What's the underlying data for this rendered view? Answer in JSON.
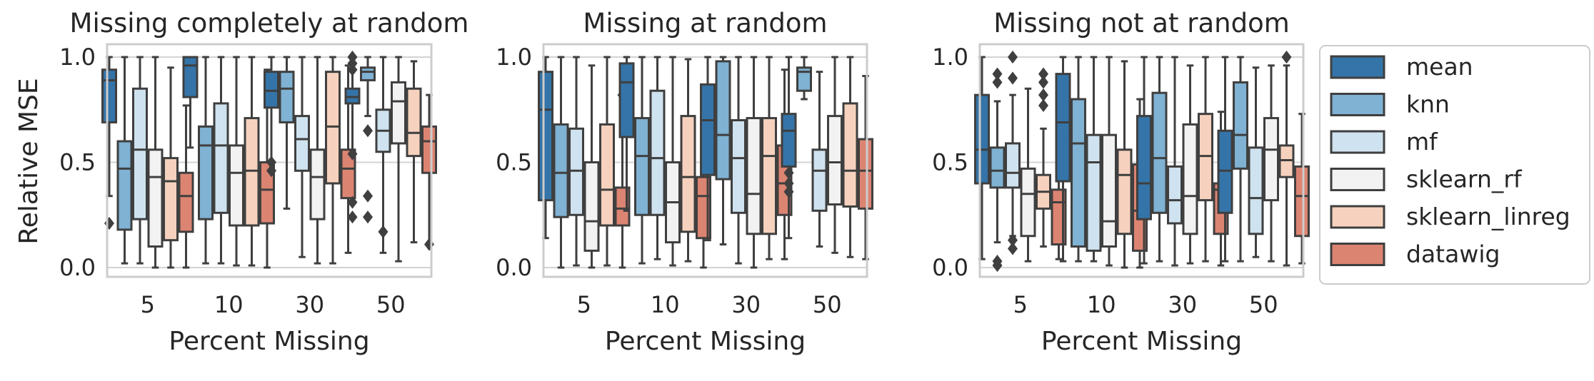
{
  "chart_data": {
    "type": "box",
    "ylabel": "Relative MSE",
    "xlabel": "Percent Missing",
    "categories": [
      "5",
      "10",
      "30",
      "50"
    ],
    "yticks": [
      "0.0",
      "0.5",
      "1.0"
    ],
    "ylim": [
      -0.04,
      1.06
    ],
    "grid": true,
    "legend_position": "right",
    "series": [
      {
        "name": "mean",
        "color": "#3474a8"
      },
      {
        "name": "knn",
        "color": "#7fb2d3"
      },
      {
        "name": "mf",
        "color": "#cfe2ef"
      },
      {
        "name": "sklearn_rf",
        "color": "#f2f2f2"
      },
      {
        "name": "sklearn_linreg",
        "color": "#f6d2be"
      },
      {
        "name": "datawig",
        "color": "#dc8472"
      }
    ],
    "panels": [
      {
        "title": "Missing completely at random",
        "groups": [
          [
            {
              "min": 0.34,
              "q1": 0.69,
              "med": 0.89,
              "q3": 0.94,
              "max": 1.0,
              "outliers": [
                0.21
              ]
            },
            {
              "min": 0.02,
              "q1": 0.18,
              "med": 0.47,
              "q3": 0.6,
              "max": 1.0
            },
            {
              "min": 0.02,
              "q1": 0.23,
              "med": 0.56,
              "q3": 0.85,
              "max": 1.0
            },
            {
              "min": 0.0,
              "q1": 0.1,
              "med": 0.43,
              "q3": 0.56,
              "max": 1.0
            },
            {
              "min": 0.0,
              "q1": 0.13,
              "med": 0.41,
              "q3": 0.52,
              "max": 0.95
            },
            {
              "min": 0.0,
              "q1": 0.17,
              "med": 0.34,
              "q3": 0.45,
              "max": 0.77
            }
          ],
          [
            {
              "min": 0.57,
              "q1": 0.81,
              "med": 0.96,
              "q3": 1.0,
              "max": 1.0
            },
            {
              "min": 0.02,
              "q1": 0.23,
              "med": 0.58,
              "q3": 0.67,
              "max": 1.0
            },
            {
              "min": 0.02,
              "q1": 0.26,
              "med": 0.58,
              "q3": 0.78,
              "max": 1.0
            },
            {
              "min": 0.01,
              "q1": 0.2,
              "med": 0.45,
              "q3": 0.58,
              "max": 1.0
            },
            {
              "min": 0.01,
              "q1": 0.2,
              "med": 0.46,
              "q3": 0.71,
              "max": 1.0
            },
            {
              "min": 0.0,
              "q1": 0.21,
              "med": 0.37,
              "q3": 0.5,
              "max": 0.94
            }
          ],
          [
            {
              "min": 0.5,
              "q1": 0.76,
              "med": 0.84,
              "q3": 0.93,
              "max": 1.0,
              "outliers": [
                0.5,
                0.46
              ]
            },
            {
              "min": 0.28,
              "q1": 0.69,
              "med": 0.85,
              "q3": 0.93,
              "max": 1.0
            },
            {
              "min": 0.05,
              "q1": 0.46,
              "med": 0.61,
              "q3": 0.72,
              "max": 1.0
            },
            {
              "min": 0.02,
              "q1": 0.23,
              "med": 0.43,
              "q3": 0.56,
              "max": 1.0
            },
            {
              "min": 0.02,
              "q1": 0.4,
              "med": 0.67,
              "q3": 0.93,
              "max": 1.0
            },
            {
              "min": 0.07,
              "q1": 0.33,
              "med": 0.47,
              "q3": 0.56,
              "max": 0.96
            }
          ],
          [
            {
              "min": 0.56,
              "q1": 0.78,
              "med": 0.81,
              "q3": 0.85,
              "max": 0.97,
              "outliers": [
                1.0,
                0.97,
                0.94,
                0.54,
                0.31,
                0.24
              ]
            },
            {
              "min": 0.72,
              "q1": 0.89,
              "med": 0.93,
              "q3": 0.95,
              "max": 1.0,
              "outliers": [
                0.65,
                0.34,
                0.24
              ]
            },
            {
              "min": 0.07,
              "q1": 0.55,
              "med": 0.65,
              "q3": 0.75,
              "max": 1.0,
              "outliers": [
                0.17
              ]
            },
            {
              "min": 0.03,
              "q1": 0.59,
              "med": 0.79,
              "q3": 0.88,
              "max": 1.0
            },
            {
              "min": 0.12,
              "q1": 0.53,
              "med": 0.64,
              "q3": 0.85,
              "max": 0.98
            },
            {
              "min": 0.11,
              "q1": 0.45,
              "med": 0.6,
              "q3": 0.67,
              "max": 0.82,
              "outliers": [
                0.11
              ]
            }
          ]
        ]
      },
      {
        "title": "Missing at random",
        "groups": [
          [
            {
              "min": 0.14,
              "q1": 0.32,
              "med": 0.75,
              "q3": 0.93,
              "max": 1.0
            },
            {
              "min": 0.0,
              "q1": 0.24,
              "med": 0.45,
              "q3": 0.68,
              "max": 1.0
            },
            {
              "min": 0.01,
              "q1": 0.25,
              "med": 0.46,
              "q3": 0.66,
              "max": 1.0
            },
            {
              "min": 0.0,
              "q1": 0.08,
              "med": 0.22,
              "q3": 0.5,
              "max": 0.96
            },
            {
              "min": 0.01,
              "q1": 0.2,
              "med": 0.37,
              "q3": 0.68,
              "max": 1.0
            },
            {
              "min": 0.0,
              "q1": 0.2,
              "med": 0.28,
              "q3": 0.38,
              "max": 0.8,
              "outliers": [
                0.82
              ]
            }
          ],
          [
            {
              "min": 0.27,
              "q1": 0.62,
              "med": 0.88,
              "q3": 0.97,
              "max": 1.0
            },
            {
              "min": 0.02,
              "q1": 0.25,
              "med": 0.53,
              "q3": 0.71,
              "max": 1.0
            },
            {
              "min": 0.04,
              "q1": 0.25,
              "med": 0.52,
              "q3": 0.84,
              "max": 1.0
            },
            {
              "min": 0.01,
              "q1": 0.12,
              "med": 0.31,
              "q3": 0.5,
              "max": 1.0
            },
            {
              "min": 0.03,
              "q1": 0.17,
              "med": 0.43,
              "q3": 0.72,
              "max": 0.99
            },
            {
              "min": 0.0,
              "q1": 0.14,
              "med": 0.34,
              "q3": 0.43,
              "max": 0.79
            }
          ],
          [
            {
              "min": 0.13,
              "q1": 0.44,
              "med": 0.7,
              "q3": 0.87,
              "max": 1.0
            },
            {
              "min": 0.11,
              "q1": 0.42,
              "med": 0.63,
              "q3": 0.98,
              "max": 1.0
            },
            {
              "min": 0.02,
              "q1": 0.26,
              "med": 0.52,
              "q3": 0.7,
              "max": 1.0
            },
            {
              "min": 0.0,
              "q1": 0.16,
              "med": 0.35,
              "q3": 0.71,
              "max": 1.0
            },
            {
              "min": 0.04,
              "q1": 0.16,
              "med": 0.53,
              "q3": 0.71,
              "max": 1.0
            },
            {
              "min": 0.04,
              "q1": 0.25,
              "med": 0.4,
              "q3": 0.58,
              "max": 0.94
            }
          ],
          [
            {
              "min": 0.14,
              "q1": 0.48,
              "med": 0.65,
              "q3": 0.73,
              "max": 1.0,
              "outliers": [
                0.45,
                0.4,
                0.36
              ]
            },
            {
              "min": 0.8,
              "q1": 0.84,
              "med": 0.93,
              "q3": 0.95,
              "max": 1.0
            },
            {
              "min": 0.1,
              "q1": 0.27,
              "med": 0.46,
              "q3": 0.56,
              "max": 0.93
            },
            {
              "min": 0.07,
              "q1": 0.3,
              "med": 0.5,
              "q3": 0.72,
              "max": 1.0
            },
            {
              "min": 0.05,
              "q1": 0.29,
              "med": 0.46,
              "q3": 0.78,
              "max": 1.0
            },
            {
              "min": 0.04,
              "q1": 0.28,
              "med": 0.46,
              "q3": 0.61,
              "max": 0.91
            }
          ]
        ]
      },
      {
        "title": "Missing not at random",
        "groups": [
          [
            {
              "min": 0.04,
              "q1": 0.4,
              "med": 0.56,
              "q3": 0.82,
              "max": 1.0
            },
            {
              "min": 0.12,
              "q1": 0.38,
              "med": 0.46,
              "q3": 0.57,
              "max": 0.79,
              "outliers": [
                0.92,
                0.88,
                0.03,
                0.01
              ]
            },
            {
              "min": 0.15,
              "q1": 0.38,
              "med": 0.45,
              "q3": 0.59,
              "max": 0.82,
              "outliers": [
                1.0,
                0.9,
                0.13,
                0.09
              ]
            },
            {
              "min": 0.03,
              "q1": 0.15,
              "med": 0.35,
              "q3": 0.47,
              "max": 0.85
            },
            {
              "min": 0.1,
              "q1": 0.28,
              "med": 0.36,
              "q3": 0.44,
              "max": 0.66,
              "outliers": [
                0.92,
                0.88,
                0.82,
                0.77
              ]
            },
            {
              "min": 0.04,
              "q1": 0.11,
              "med": 0.31,
              "q3": 0.37,
              "max": 0.59
            }
          ],
          [
            {
              "min": 0.03,
              "q1": 0.41,
              "med": 0.69,
              "q3": 0.92,
              "max": 1.0
            },
            {
              "min": 0.03,
              "q1": 0.1,
              "med": 0.59,
              "q3": 0.8,
              "max": 1.0
            },
            {
              "min": 0.03,
              "q1": 0.08,
              "med": 0.5,
              "q3": 0.63,
              "max": 1.0
            },
            {
              "min": 0.01,
              "q1": 0.1,
              "med": 0.22,
              "q3": 0.63,
              "max": 1.0
            },
            {
              "min": 0.0,
              "q1": 0.16,
              "med": 0.44,
              "q3": 0.56,
              "max": 0.98
            },
            {
              "min": 0.0,
              "q1": 0.08,
              "med": 0.27,
              "q3": 0.49,
              "max": 0.8
            }
          ],
          [
            {
              "min": 0.02,
              "q1": 0.23,
              "med": 0.4,
              "q3": 0.72,
              "max": 1.0
            },
            {
              "min": 0.03,
              "q1": 0.26,
              "med": 0.52,
              "q3": 0.83,
              "max": 1.0
            },
            {
              "min": 0.01,
              "q1": 0.21,
              "med": 0.32,
              "q3": 0.48,
              "max": 1.0
            },
            {
              "min": 0.02,
              "q1": 0.16,
              "med": 0.34,
              "q3": 0.68,
              "max": 0.96
            },
            {
              "min": 0.03,
              "q1": 0.32,
              "med": 0.53,
              "q3": 0.73,
              "max": 1.0
            },
            {
              "min": 0.01,
              "q1": 0.16,
              "med": 0.37,
              "q3": 0.4,
              "max": 0.74
            }
          ],
          [
            {
              "min": 0.03,
              "q1": 0.26,
              "med": 0.46,
              "q3": 0.65,
              "max": 1.0
            },
            {
              "min": 0.03,
              "q1": 0.47,
              "med": 0.63,
              "q3": 0.88,
              "max": 1.0
            },
            {
              "min": 0.05,
              "q1": 0.16,
              "med": 0.33,
              "q3": 0.57,
              "max": 0.95
            },
            {
              "min": 0.03,
              "q1": 0.32,
              "med": 0.56,
              "q3": 0.71,
              "max": 0.96
            },
            {
              "min": 0.01,
              "q1": 0.43,
              "med": 0.51,
              "q3": 0.58,
              "max": 0.96,
              "outliers": [
                1.0
              ]
            },
            {
              "min": 0.02,
              "q1": 0.15,
              "med": 0.34,
              "q3": 0.48,
              "max": 0.73
            }
          ]
        ]
      }
    ]
  }
}
